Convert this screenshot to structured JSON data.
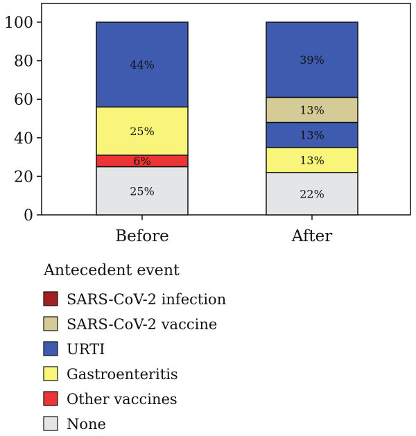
{
  "chart_data": {
    "type": "bar",
    "stacked": true,
    "categories": [
      "Before",
      "After"
    ],
    "ylim": [
      0,
      100
    ],
    "yticks": [
      0,
      20,
      40,
      60,
      80,
      100
    ],
    "series": [
      {
        "name": "None",
        "color": "#e4e5e7",
        "values": [
          25,
          22
        ],
        "labels": [
          "25%",
          "22%"
        ]
      },
      {
        "name": "Other vaccines",
        "color": "#ee3535",
        "values": [
          6,
          0
        ],
        "labels": [
          "6%",
          ""
        ]
      },
      {
        "name": "Gastroenteritis",
        "color": "#f8f57a",
        "values": [
          25,
          13
        ],
        "labels": [
          "25%",
          "13%"
        ]
      },
      {
        "name": "URTI",
        "color": "#3f5bb0",
        "values": [
          0,
          13
        ],
        "labels": [
          "",
          "13%"
        ]
      },
      {
        "name": "SARS-CoV-2 vaccine",
        "color": "#d5cb96",
        "values": [
          0,
          13
        ],
        "labels": [
          "",
          "13%"
        ]
      },
      {
        "name": "URTI",
        "color": "#3f5bb0",
        "values": [
          44,
          39
        ],
        "labels": [
          "44%",
          "39%"
        ]
      }
    ],
    "legend": {
      "title": "Antecedent event",
      "placement": "bottom",
      "items": [
        {
          "name": "SARS-CoV-2 infection",
          "color": "#a02024"
        },
        {
          "name": "SARS-CoV-2 vaccine",
          "color": "#d5cb96"
        },
        {
          "name": "URTI",
          "color": "#3f5bb0"
        },
        {
          "name": "Gastroenteritis",
          "color": "#f8f57a"
        },
        {
          "name": "Other vaccines",
          "color": "#ee3535"
        },
        {
          "name": "None",
          "color": "#e4e5e7"
        }
      ]
    }
  }
}
